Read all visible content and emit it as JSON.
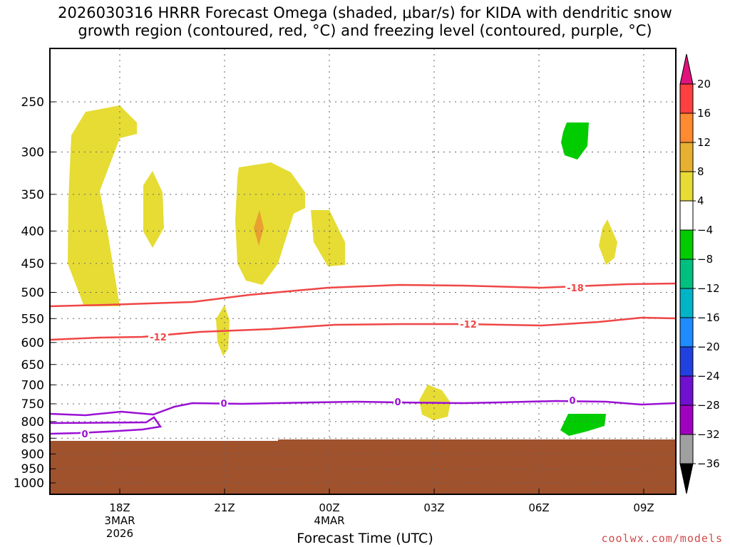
{
  "chart_data": {
    "type": "contour",
    "title_line1": "2026030316 HRRR Forecast Omega (shaded, μbar/s) for KIDA with dendritic snow",
    "title_line2": "growth region (contoured, red, °C) and freezing level (contoured, purple, °C)",
    "xlabel": "Forecast Time (UTC)",
    "y_ticks": [
      250,
      300,
      350,
      400,
      450,
      500,
      550,
      600,
      650,
      700,
      750,
      800,
      850,
      900,
      950,
      1000
    ],
    "y_range_hpa": [
      200,
      1050
    ],
    "x_range_hours": [
      16.0,
      10.0
    ],
    "x_ticks": [
      {
        "label": "18Z",
        "sub1": "3MAR",
        "sub2": "2026",
        "hour": 18
      },
      {
        "label": "21Z",
        "sub1": "",
        "sub2": "",
        "hour": 21
      },
      {
        "label": "00Z",
        "sub1": "4MAR",
        "sub2": "",
        "hour": 24
      },
      {
        "label": "03Z",
        "sub1": "",
        "sub2": "",
        "hour": 27
      },
      {
        "label": "06Z",
        "sub1": "",
        "sub2": "",
        "hour": 30
      },
      {
        "label": "09Z",
        "sub1": "",
        "sub2": "",
        "hour": 33
      }
    ],
    "colorbar": {
      "levels": [
        20,
        16,
        12,
        8,
        4,
        -4,
        -8,
        -12,
        -16,
        -20,
        -24,
        -28,
        -32,
        -36
      ],
      "colors": [
        "#e8e8e8",
        "#ff4040",
        "#ff8a30",
        "#e8b030",
        "#e6dc34",
        "#ffffff",
        "#00cc00",
        "#00c080",
        "#00b4c8",
        "#1e8cff",
        "#2040e0",
        "#7010d0",
        "#a000c0",
        "#a0a0a0"
      ],
      "top_arrow_color": "#e0127c",
      "bottom_arrow_color": "#000000"
    },
    "contour_labels": {
      "dgz_upper": "-18",
      "dgz_lower": "-12",
      "freezing": "0"
    },
    "colors": {
      "dgz": "#f04646",
      "freezing": "#9a10d4",
      "ground": "#a0522d",
      "omega_pos4": "#e6dc34",
      "omega_pos8": "#e8a030",
      "omega_neg4": "#00cc00"
    }
  },
  "credit": "coolwx.com/models"
}
